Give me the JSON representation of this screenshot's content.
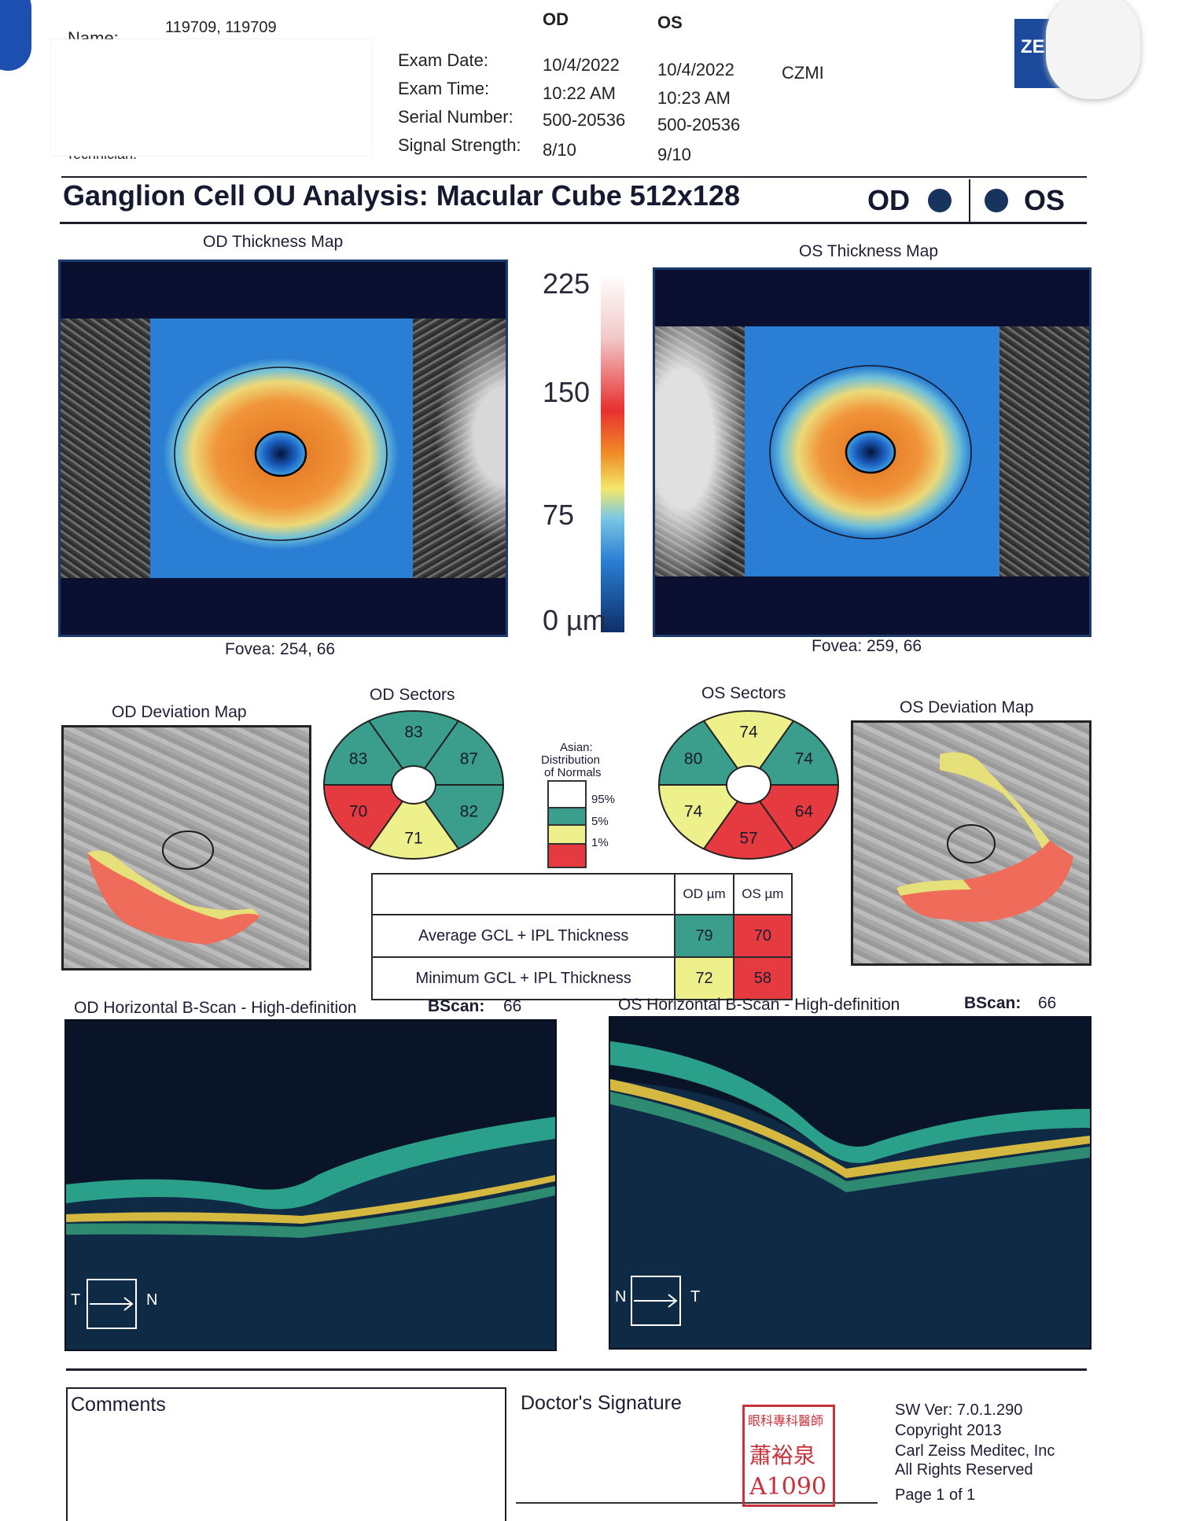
{
  "header": {
    "name_label": "Name:",
    "name_value": "119709, 119709",
    "technician_label": "Technician:",
    "col_od": "OD",
    "col_os": "OS",
    "rows": [
      {
        "label": "Exam Date:",
        "od": "10/4/2022",
        "os": "10/4/2022"
      },
      {
        "label": "Exam Time:",
        "od": "10:22 AM",
        "os": "10:23 AM"
      },
      {
        "label": "Serial Number:",
        "od": "500-20536",
        "os": "500-20536"
      },
      {
        "label": "Signal Strength:",
        "od": "8/10",
        "os": "9/10"
      }
    ],
    "institution": "CZMI",
    "logo_text": "ZE"
  },
  "title": {
    "text": "Ganglion Cell OU Analysis: Macular Cube 512x128",
    "od": "OD",
    "os": "OS"
  },
  "thickness": {
    "od_title": "OD Thickness Map",
    "os_title": "OS Thickness Map",
    "od_fovea": "Fovea: 254, 66",
    "os_fovea": "Fovea: 259, 66",
    "scale_labels": [
      "225",
      "150",
      "75",
      "0 µm"
    ]
  },
  "deviation": {
    "od_title": "OD Deviation Map",
    "os_title": "OS Deviation Map"
  },
  "sectors": {
    "od_title": "OD Sectors",
    "os_title": "OS Sectors",
    "od": {
      "top": "83",
      "upper_left": "83",
      "upper_right": "87",
      "lower_left": "70",
      "bottom": "71",
      "lower_right": "82"
    },
    "os": {
      "top": "74",
      "upper_left": "80",
      "upper_right": "74",
      "lower_left": "74",
      "bottom": "57",
      "lower_right": "64"
    },
    "colors": {
      "green": "#3b9d8c",
      "yellow": "#eef08c",
      "red": "#e53a40"
    }
  },
  "legend": {
    "line1": "Asian:",
    "line2": "Distribution",
    "line3": "of Normals",
    "p95": "95%",
    "p5": "5%",
    "p1": "1%"
  },
  "table": {
    "col_od": "OD µm",
    "col_os": "OS µm",
    "rows": [
      {
        "label": "Average GCL + IPL Thickness",
        "od": "79",
        "os": "70"
      },
      {
        "label": "Minimum GCL + IPL Thickness",
        "od": "72",
        "os": "58"
      }
    ]
  },
  "bscan": {
    "od_title": "OD Horizontal B-Scan - High-definition",
    "os_title": "OS Horizontal B-Scan - High-definition",
    "bscan_label": "BScan:",
    "od_value": "66",
    "os_value": "66",
    "od_left": "T",
    "od_right": "N",
    "os_left": "N",
    "os_right": "T"
  },
  "footer": {
    "comments": "Comments",
    "signature": "Doctor's Signature",
    "seal_line1": "眼科專科醫師",
    "seal_line2": "蕭裕泉",
    "seal_line3": "A1090",
    "sw_ver": "SW Ver: 7.0.1.290",
    "copyright": "Copyright 2013",
    "company": "Carl Zeiss Meditec, Inc",
    "rights": "All Rights Reserved",
    "page": "Page 1 of 1"
  }
}
